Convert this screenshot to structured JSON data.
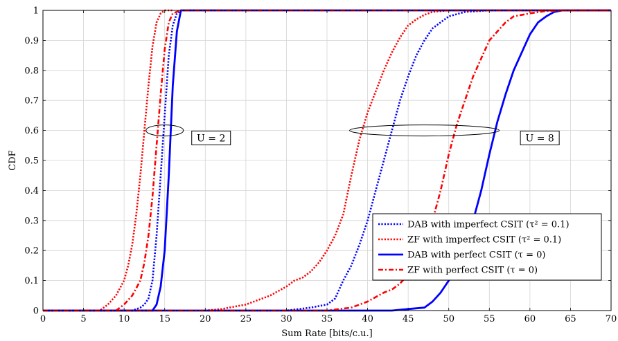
{
  "chart_data": {
    "type": "line",
    "title": "",
    "xlabel": "Sum Rate [bits/c.u.]",
    "ylabel": "CDF",
    "xlim": [
      0,
      70
    ],
    "ylim": [
      0,
      1
    ],
    "xticks": [
      0,
      5,
      10,
      15,
      20,
      25,
      30,
      35,
      40,
      45,
      50,
      55,
      60,
      65,
      70
    ],
    "yticks": [
      0,
      0.1,
      0.2,
      0.3,
      0.4,
      0.5,
      0.6,
      0.7,
      0.8,
      0.9,
      1
    ],
    "xtick_labels": [
      "0",
      "5",
      "10",
      "15",
      "20",
      "25",
      "30",
      "35",
      "40",
      "45",
      "50",
      "55",
      "60",
      "65",
      "70"
    ],
    "ytick_labels": [
      "0",
      "0.1",
      "0.2",
      "0.3",
      "0.4",
      "0.5",
      "0.6",
      "0.7",
      "0.8",
      "0.9",
      "1"
    ],
    "grid": true,
    "legend_position": "bottom-right",
    "series": [
      {
        "name": "DAB with imperfect CSIT (τ² = 0.1)",
        "style": "dotted",
        "color": "#0000ff",
        "groups": [
          {
            "x": [
              0,
              11,
              12,
              12.5,
              13,
              13.5,
              14,
              14.5,
              15,
              15.5,
              16,
              16.5,
              17,
              17.5,
              19,
              27
            ],
            "y": [
              0,
              0,
              0.01,
              0.02,
              0.04,
              0.1,
              0.25,
              0.45,
              0.65,
              0.85,
              0.95,
              0.99,
              1,
              1,
              1,
              1
            ]
          },
          {
            "x": [
              20,
              30,
              33,
              35,
              36,
              37,
              38,
              39,
              40,
              41,
              42,
              43,
              44,
              45,
              46,
              47,
              48,
              50,
              52,
              55,
              70
            ],
            "y": [
              0,
              0,
              0.01,
              0.02,
              0.04,
              0.1,
              0.15,
              0.22,
              0.3,
              0.4,
              0.5,
              0.6,
              0.7,
              0.78,
              0.85,
              0.9,
              0.94,
              0.98,
              0.995,
              1,
              1
            ]
          }
        ]
      },
      {
        "name": "ZF with imperfect CSIT (τ² = 0.1)",
        "style": "dotted",
        "color": "#ff0000",
        "groups": [
          {
            "x": [
              0,
              7,
              8,
              9,
              10,
              10.5,
              11,
              11.5,
              12,
              12.5,
              13,
              13.5,
              14,
              14.5,
              15,
              15.5,
              16
            ],
            "y": [
              0,
              0,
              0.02,
              0.05,
              0.1,
              0.15,
              0.22,
              0.32,
              0.45,
              0.6,
              0.75,
              0.88,
              0.96,
              0.99,
              1,
              1,
              1
            ]
          },
          {
            "x": [
              20,
              22,
              25,
              28,
              30,
              31,
              32,
              33,
              34,
              35,
              36,
              37,
              38,
              39,
              40,
              41,
              42,
              43,
              44,
              45,
              46,
              47,
              48,
              50,
              52,
              70
            ],
            "y": [
              0,
              0.005,
              0.02,
              0.05,
              0.08,
              0.1,
              0.11,
              0.13,
              0.16,
              0.2,
              0.25,
              0.32,
              0.45,
              0.57,
              0.66,
              0.73,
              0.8,
              0.86,
              0.91,
              0.95,
              0.97,
              0.985,
              0.995,
              1,
              1,
              1
            ]
          }
        ]
      },
      {
        "name": "DAB with perfect CSIT (τ = 0)",
        "style": "solid",
        "color": "#0000ff",
        "groups": [
          {
            "x": [
              0,
              13.5,
              14,
              14.5,
              15,
              15.5,
              16,
              16.5,
              17,
              70
            ],
            "y": [
              0,
              0,
              0.02,
              0.08,
              0.2,
              0.45,
              0.75,
              0.93,
              1,
              1
            ]
          },
          {
            "x": [
              0,
              43,
              45,
              47,
              48,
              49,
              50,
              51,
              52,
              53,
              54,
              55,
              56,
              57,
              58,
              59,
              60,
              61,
              62,
              63,
              64,
              70
            ],
            "y": [
              0,
              0,
              0.005,
              0.01,
              0.03,
              0.06,
              0.1,
              0.15,
              0.22,
              0.3,
              0.4,
              0.52,
              0.63,
              0.72,
              0.8,
              0.86,
              0.92,
              0.96,
              0.98,
              0.995,
              1,
              1
            ]
          }
        ]
      },
      {
        "name": "ZF with perfect CSIT (τ = 0)",
        "style": "dashdot",
        "color": "#ff0000",
        "groups": [
          {
            "x": [
              0,
              9,
              10,
              11,
              12,
              12.5,
              13,
              13.5,
              14,
              14.5,
              15,
              15.5,
              16,
              17,
              70
            ],
            "y": [
              0,
              0,
              0.02,
              0.05,
              0.1,
              0.16,
              0.25,
              0.38,
              0.55,
              0.72,
              0.87,
              0.96,
              0.99,
              1,
              1
            ]
          },
          {
            "x": [
              0,
              35,
              38,
              40,
              42,
              43,
              44,
              45,
              46,
              47,
              48,
              49,
              50,
              51,
              52,
              53,
              54,
              55,
              56,
              57,
              58,
              60,
              62,
              64,
              70
            ],
            "y": [
              0,
              0,
              0.01,
              0.03,
              0.06,
              0.07,
              0.09,
              0.12,
              0.16,
              0.22,
              0.3,
              0.4,
              0.52,
              0.62,
              0.7,
              0.78,
              0.84,
              0.9,
              0.93,
              0.96,
              0.98,
              0.99,
              0.998,
              1,
              1
            ]
          }
        ]
      }
    ],
    "annotations": [
      {
        "text": "U = 2",
        "ellipse_center": [
          15,
          0.6
        ],
        "label_at": [
          18.5,
          0.575
        ]
      },
      {
        "text": "U = 8",
        "ellipse_center": [
          47,
          0.6
        ],
        "label_at": [
          59,
          0.575
        ]
      }
    ]
  }
}
